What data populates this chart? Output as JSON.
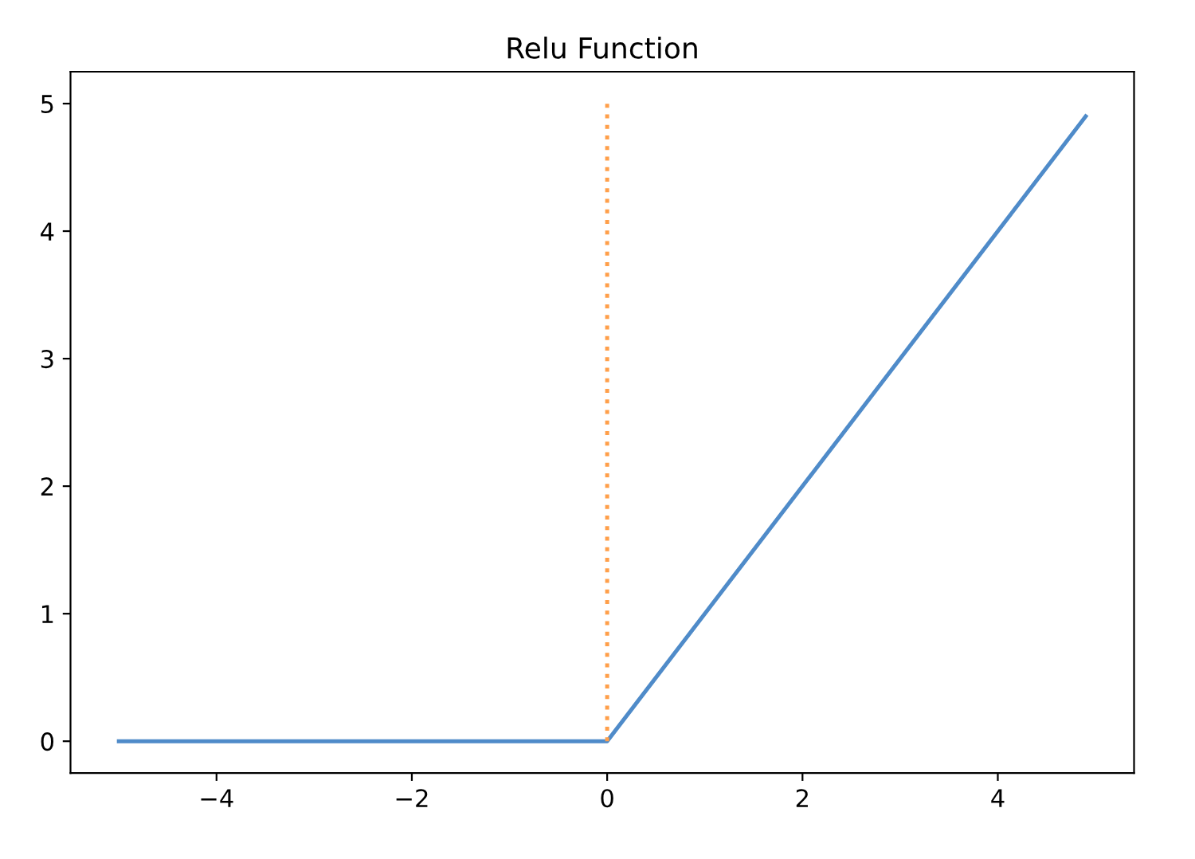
{
  "chart_data": {
    "type": "line",
    "title": "Relu Function",
    "series": [
      {
        "x": [
          -5,
          0,
          4.9
        ],
        "values": [
          0,
          0,
          4.9
        ],
        "color": "#4f8bc9",
        "line_style": "solid"
      },
      {
        "x": [
          0,
          0
        ],
        "values": [
          0,
          5
        ],
        "color": "#ff9f4a",
        "line_style": "dotted"
      }
    ],
    "xlim": [
      -5.495,
      5.395
    ],
    "ylim": [
      -0.25,
      5.25
    ],
    "xticks": [
      {
        "value": -4,
        "label": "−4"
      },
      {
        "value": -2,
        "label": "−2"
      },
      0,
      2,
      4
    ],
    "yticks": [
      0,
      1,
      2,
      3,
      4,
      5
    ],
    "grid": false,
    "legend": false
  }
}
